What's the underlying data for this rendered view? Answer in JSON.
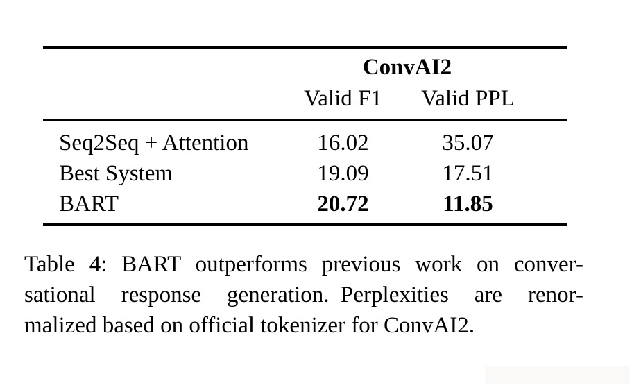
{
  "colors": {
    "background": "#ffffff",
    "text": "#000000",
    "rule": "#000000"
  },
  "table": {
    "group_header": "ConvAI2",
    "columns": [
      "Valid F1",
      "Valid PPL"
    ],
    "rows": [
      {
        "label": "Seq2Seq + Attention",
        "valid_f1": "16.02",
        "valid_ppl": "35.07",
        "bold": false
      },
      {
        "label": "Best System",
        "valid_f1": "19.09",
        "valid_ppl": "17.51",
        "bold": false
      },
      {
        "label": "BART",
        "valid_f1": "20.72",
        "valid_ppl": "11.85",
        "bold": true
      }
    ]
  },
  "caption": {
    "lines": [
      "Table 4: BART outperforms previous work on conver-",
      "sational response generation. Perplexities are renor-",
      "malized based on official tokenizer for ConvAI2."
    ]
  }
}
